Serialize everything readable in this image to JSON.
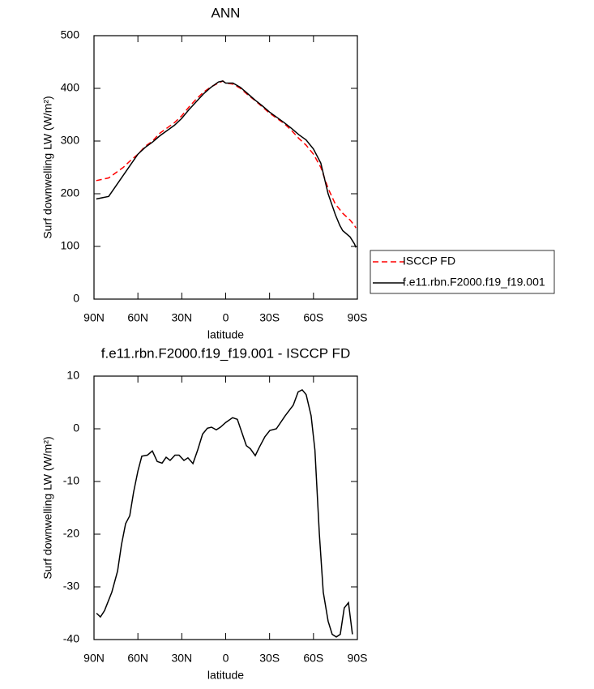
{
  "chart_data": [
    {
      "type": "line",
      "title": "ANN",
      "x_label": "latitude",
      "y_label": "Surf downwelling LW (W/m²)",
      "x": [
        88.5,
        80,
        75,
        70,
        65,
        60,
        55,
        50,
        45,
        40,
        35,
        30,
        25,
        20,
        15,
        10,
        5,
        2,
        0,
        -5,
        -10,
        -15,
        -20,
        -25,
        -30,
        -35,
        -40,
        -45,
        -50,
        -55,
        -60,
        -65,
        -70,
        -75,
        -78,
        -80,
        -85,
        -88,
        -89
      ],
      "series": [
        {
          "name": "ISCCP FD",
          "color": "#ff0000",
          "dashed": true,
          "values": [
            225,
            230,
            240,
            250,
            263,
            275,
            290,
            300,
            315,
            325,
            335,
            348,
            365,
            380,
            393,
            403,
            410,
            414,
            410,
            408,
            400,
            388,
            377,
            365,
            353,
            343,
            333,
            320,
            305,
            292,
            275,
            250,
            210,
            180,
            170,
            163,
            150,
            140,
            135
          ]
        },
        {
          "name": "f.e11.rbn.F2000.f19_f19.001",
          "color": "#000000",
          "dashed": false,
          "values": [
            190,
            195,
            215,
            235,
            255,
            275,
            288,
            298,
            310,
            320,
            330,
            343,
            360,
            375,
            390,
            402,
            412,
            414,
            410,
            410,
            402,
            390,
            378,
            367,
            355,
            345,
            335,
            324,
            312,
            302,
            285,
            258,
            200,
            160,
            140,
            130,
            118,
            105,
            98
          ]
        }
      ],
      "xlim": [
        90,
        -90
      ],
      "xticks": [
        {
          "value": 90,
          "label": "90N"
        },
        {
          "value": 60,
          "label": "60N"
        },
        {
          "value": 30,
          "label": "30N"
        },
        0,
        {
          "value": -30,
          "label": "30S"
        },
        {
          "value": -60,
          "label": "60S"
        },
        {
          "value": -90,
          "label": "90S"
        }
      ],
      "ylim": [
        0,
        500
      ],
      "yticks": [
        0,
        100,
        200,
        300,
        400,
        500
      ],
      "legend": "outside-right"
    },
    {
      "type": "line",
      "title": "f.e11.rbn.F2000.f19_f19.001 - ISCCP FD",
      "x_label": "latitude",
      "y_label": "Surf downwelling LW (W/m²)",
      "x": [
        88.3,
        85.6,
        82.8,
        77.8,
        73.9,
        71.2,
        68.4,
        65.6,
        62.9,
        60,
        57.3,
        53.5,
        50.1,
        46.8,
        43.5,
        40.7,
        38,
        34.6,
        31.9,
        28.5,
        25.8,
        22.4,
        19.1,
        15.8,
        12.5,
        9.7,
        6.4,
        3.6,
        0,
        -4.7,
        -8,
        -10.8,
        -14.1,
        -16.9,
        -20.2,
        -23,
        -26.8,
        -30.2,
        -34.6,
        -40.7,
        -46.2,
        -49.5,
        -52.3,
        -55,
        -58.4,
        -61,
        -64,
        -66.7,
        -70,
        -72.8,
        -75.6,
        -78.3,
        -81,
        -83.9,
        -86.6
      ],
      "values": [
        -35,
        -35.7,
        -34.5,
        -31,
        -27,
        -22,
        -18,
        -16.5,
        -12,
        -8,
        -5.2,
        -5,
        -4.2,
        -6.2,
        -6.5,
        -5.4,
        -6,
        -5,
        -5,
        -6,
        -5.5,
        -6.6,
        -4,
        -1,
        0.1,
        0.3,
        -0.2,
        0.3,
        1.2,
        2.1,
        1.8,
        -0.5,
        -3.2,
        -3.8,
        -5.1,
        -3.5,
        -1.5,
        -0.3,
        0,
        2.5,
        4.5,
        7,
        7.4,
        6.5,
        2.5,
        -4,
        -20,
        -31,
        -36.5,
        -39,
        -39.5,
        -39,
        -34,
        -33,
        -39
      ],
      "color": "#000000",
      "xlim": [
        90,
        -90
      ],
      "xticks": [
        {
          "value": 90,
          "label": "90N"
        },
        {
          "value": 60,
          "label": "60N"
        },
        {
          "value": 30,
          "label": "30N"
        },
        0,
        {
          "value": -30,
          "label": "30S"
        },
        {
          "value": -60,
          "label": "60S"
        },
        {
          "value": -90,
          "label": "90S"
        }
      ],
      "ylim": [
        -40,
        10
      ],
      "yticks": [
        -40,
        -30,
        -20,
        -10,
        0,
        10
      ]
    }
  ]
}
